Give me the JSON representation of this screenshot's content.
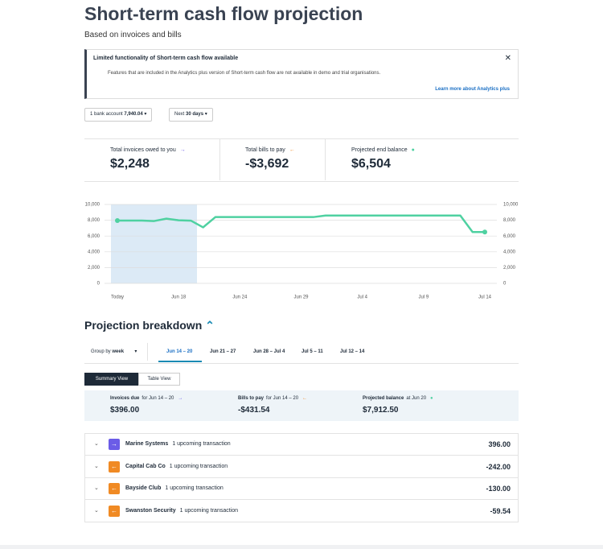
{
  "header": {
    "title": "Short-term cash flow projection",
    "subtitle": "Based on invoices and bills"
  },
  "banner": {
    "title": "Limited functionality of Short-term cash flow available",
    "text": "Features that are included in the Analytics plus version of Short-term cash flow are not available in demo and trial organisations.",
    "link": "Learn more about Analytics plus"
  },
  "filters": {
    "account_label": "1 bank account",
    "account_value": "7,940.04",
    "period_label": "Next",
    "period_value": "30 days"
  },
  "summary": [
    {
      "label": "Total invoices owed to you",
      "value": "$2,248",
      "color": "#6b5ce7"
    },
    {
      "label": "Total bills to pay",
      "value": "-$3,692",
      "color": "#f08a24"
    },
    {
      "label": "Projected end balance",
      "value": "$6,504",
      "color": "#4fd1a1"
    }
  ],
  "chart_data": {
    "type": "line",
    "xlim": [
      0,
      30
    ],
    "xticks": [
      {
        "value": 0,
        "label": "Today"
      },
      {
        "value": 5,
        "label": "Jun 18"
      },
      {
        "value": 10,
        "label": "Jun 24"
      },
      {
        "value": 15,
        "label": "Jun 29"
      },
      {
        "value": 20,
        "label": "Jul 4"
      },
      {
        "value": 25,
        "label": "Jul 9"
      },
      {
        "value": 30,
        "label": "Jul 14"
      }
    ],
    "ylim": [
      0,
      10000
    ],
    "yticks": [
      0,
      {
        "value": 2000,
        "label": "2,000"
      },
      {
        "value": 4000,
        "label": "4,000"
      },
      {
        "value": 6000,
        "label": "6,000"
      },
      {
        "value": 8000,
        "label": "8,000"
      },
      {
        "value": 10000,
        "label": "10,000"
      }
    ],
    "grid": true,
    "series": [
      {
        "color": "#4fd1a1",
        "values": [
          7960,
          7960,
          7960,
          7900,
          8200,
          8000,
          7950,
          7100,
          8400,
          8400,
          8400,
          8400,
          8400,
          8400,
          8400,
          8400,
          8400,
          8600,
          8600,
          8600,
          8600,
          8600,
          8600,
          8600,
          8600,
          8600,
          8600,
          8600,
          8600,
          6500,
          6504
        ]
      }
    ]
  },
  "breakdown": {
    "title": "Projection breakdown",
    "group_label": "Group by",
    "group_value": "week",
    "tabs": [
      "Jun 14 – 20",
      "Jun 21 – 27",
      "Jun 28 – Jul 4",
      "Jul 5 – 11",
      "Jul 12 – 14"
    ],
    "views": [
      "Summary View",
      "Table View"
    ],
    "week_summary": [
      {
        "label": "Invoices due",
        "period": "for Jun 14 – 20",
        "value": "$396.00",
        "color": "#6b5ce7"
      },
      {
        "label": "Bills to pay",
        "period": "for Jun 14 – 20",
        "value": "-$431.54",
        "color": "#f08a24"
      },
      {
        "label": "Projected balance",
        "period": "at Jun 20",
        "value": "$7,912.50",
        "color": "#4fd1a1"
      }
    ],
    "transactions": [
      {
        "name": "Marine Systems",
        "note": "1 upcoming transaction",
        "amount": "396.00",
        "icon_color": "#6b5ce7",
        "icon": "→"
      },
      {
        "name": "Capital Cab Co",
        "note": "1 upcoming transaction",
        "amount": "-242.00",
        "icon_color": "#f08a24",
        "icon": "←"
      },
      {
        "name": "Bayside Club",
        "note": "1 upcoming transaction",
        "amount": "-130.00",
        "icon_color": "#f08a24",
        "icon": "←"
      },
      {
        "name": "Swanston Security",
        "note": "1 upcoming transaction",
        "amount": "-59.54",
        "icon_color": "#f08a24",
        "icon": "←"
      }
    ]
  }
}
